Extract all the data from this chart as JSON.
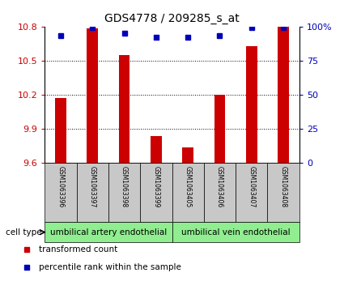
{
  "title": "GDS4778 / 209285_s_at",
  "samples": [
    "GSM1063396",
    "GSM1063397",
    "GSM1063398",
    "GSM1063399",
    "GSM1063405",
    "GSM1063406",
    "GSM1063407",
    "GSM1063408"
  ],
  "transformed_counts": [
    10.17,
    10.78,
    10.55,
    9.84,
    9.74,
    10.2,
    10.63,
    10.8
  ],
  "percentile_ranks": [
    93,
    99,
    95,
    92,
    92,
    93,
    99,
    99
  ],
  "ylim": [
    9.6,
    10.8
  ],
  "yticks": [
    9.6,
    9.9,
    10.2,
    10.5,
    10.8
  ],
  "right_yticks": [
    0,
    25,
    50,
    75,
    100
  ],
  "right_ylabels": [
    "0",
    "25",
    "50",
    "75",
    "100%"
  ],
  "cell_types": [
    {
      "label": "umbilical artery endothelial",
      "start": 0,
      "end": 4,
      "color": "#90EE90"
    },
    {
      "label": "umbilical vein endothelial",
      "start": 4,
      "end": 8,
      "color": "#90EE90"
    }
  ],
  "bar_color": "#CC0000",
  "percentile_color": "#0000BB",
  "grid_color": "#000000",
  "bg_color": "#FFFFFF",
  "label_color_left": "#CC0000",
  "label_color_right": "#0000BB",
  "sample_box_color": "#C8C8C8",
  "legend_items": [
    {
      "label": "transformed count",
      "color": "#CC0000"
    },
    {
      "label": "percentile rank within the sample",
      "color": "#0000BB"
    }
  ]
}
